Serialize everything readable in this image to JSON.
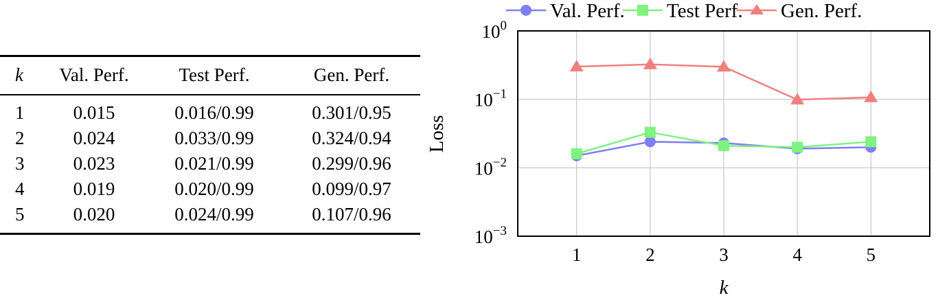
{
  "table": {
    "headers": [
      "k",
      "Val. Perf.",
      "Test Perf.",
      "Gen. Perf."
    ],
    "rows": [
      [
        "1",
        "0.015",
        "0.016/0.99",
        "0.301/0.95"
      ],
      [
        "2",
        "0.024",
        "0.033/0.99",
        "0.324/0.94"
      ],
      [
        "3",
        "0.023",
        "0.021/0.99",
        "0.299/0.96"
      ],
      [
        "4",
        "0.019",
        "0.020/0.99",
        "0.099/0.97"
      ],
      [
        "5",
        "0.020",
        "0.024/0.99",
        "0.107/0.96"
      ]
    ]
  },
  "chart_data": {
    "type": "line",
    "title": "",
    "xlabel": "k",
    "ylabel": "Loss",
    "yscale": "log",
    "x": [
      1,
      2,
      3,
      4,
      5
    ],
    "xticks": [
      "1",
      "2",
      "3",
      "4",
      "5"
    ],
    "yticks": [
      "10^0",
      "10^-1",
      "10^-2",
      "10^-3"
    ],
    "ylim": [
      0.001,
      1
    ],
    "xlim": [
      0.2,
      5.8
    ],
    "grid": true,
    "legend_position": "top",
    "series": [
      {
        "name": "Val. Perf.",
        "marker": "circle",
        "color": "#7f7ff2",
        "values": [
          0.015,
          0.024,
          0.023,
          0.019,
          0.02
        ]
      },
      {
        "name": "Test Perf.",
        "marker": "square",
        "color": "#7ff27f",
        "values": [
          0.016,
          0.033,
          0.021,
          0.02,
          0.024
        ]
      },
      {
        "name": "Gen. Perf.",
        "marker": "triangle",
        "color": "#f27f7f",
        "values": [
          0.301,
          0.324,
          0.299,
          0.099,
          0.107
        ]
      }
    ]
  }
}
